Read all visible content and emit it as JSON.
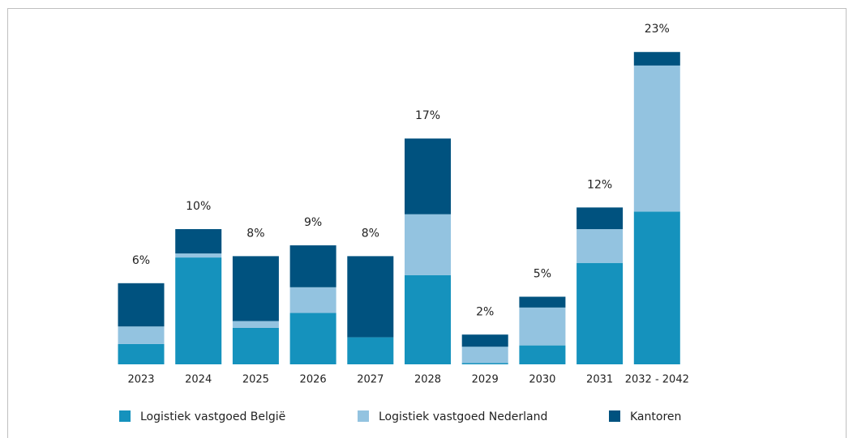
{
  "chart_data": {
    "type": "stacked_bar",
    "categories": [
      "2023",
      "2024",
      "2025",
      "2026",
      "2027",
      "2028",
      "2029",
      "2030",
      "2031",
      "2032 - 2042"
    ],
    "series": [
      {
        "name": "Logistiek vastgoed België",
        "color": "#1592bd",
        "values": [
          1.5,
          7.9,
          2.7,
          3.8,
          2.0,
          6.6,
          0.1,
          1.4,
          7.5,
          11.3
        ]
      },
      {
        "name": "Logistiek vastgoed Nederland",
        "color": "#93c3e0",
        "values": [
          1.3,
          0.3,
          0.5,
          1.9,
          0,
          4.5,
          1.2,
          2.8,
          2.5,
          10.8
        ]
      },
      {
        "name": "Kantoren",
        "color": "#00527f",
        "values": [
          3.2,
          1.8,
          4.8,
          3.1,
          6.0,
          5.6,
          0.9,
          0.8,
          1.6,
          1.0
        ]
      }
    ],
    "totals": {
      "values": [
        6,
        10,
        8,
        9,
        8,
        17,
        2,
        5,
        12,
        23
      ],
      "value_labels": [
        "6%",
        "10%",
        "8%",
        "9%",
        "8%",
        "17%",
        "2%",
        "5%",
        "12%",
        "23%"
      ]
    },
    "legend": "bottom"
  }
}
